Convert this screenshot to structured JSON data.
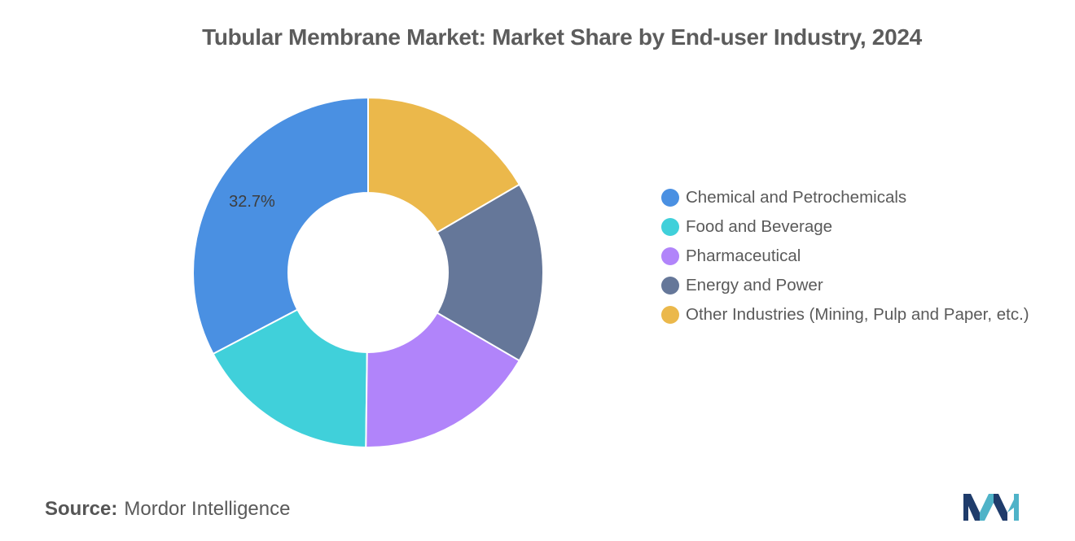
{
  "title": "Tubular Membrane Market: Market Share by End-user Industry, 2024",
  "chart_data": {
    "type": "pie",
    "variant": "donut",
    "title": "Tubular Membrane Market: Market Share by End-user Industry, 2024",
    "slices": [
      {
        "label": "Chemical and Petrochemicals",
        "value": 32.7,
        "color": "#4a90e2",
        "data_label": "32.7%"
      },
      {
        "label": "Food and Beverage",
        "value": 17.1,
        "color": "#40d0da",
        "data_label": ""
      },
      {
        "label": "Pharmaceutical",
        "value": 16.8,
        "color": "#b184fa",
        "data_label": ""
      },
      {
        "label": "Energy and Power",
        "value": 16.8,
        "color": "#657799",
        "data_label": ""
      },
      {
        "label": "Other Industries (Mining, Pulp and Paper, etc.)",
        "value": 16.6,
        "color": "#ebb84b",
        "data_label": ""
      }
    ],
    "start": "12 o'clock",
    "direction": "counter-clockwise",
    "legend_position": "right"
  },
  "source": {
    "label": "Source:",
    "text": "Mordor Intelligence"
  },
  "logo": {
    "icon": "mordor-intelligence-logo-icon",
    "colors": [
      "#1f3c6b",
      "#4fb3c8"
    ]
  }
}
